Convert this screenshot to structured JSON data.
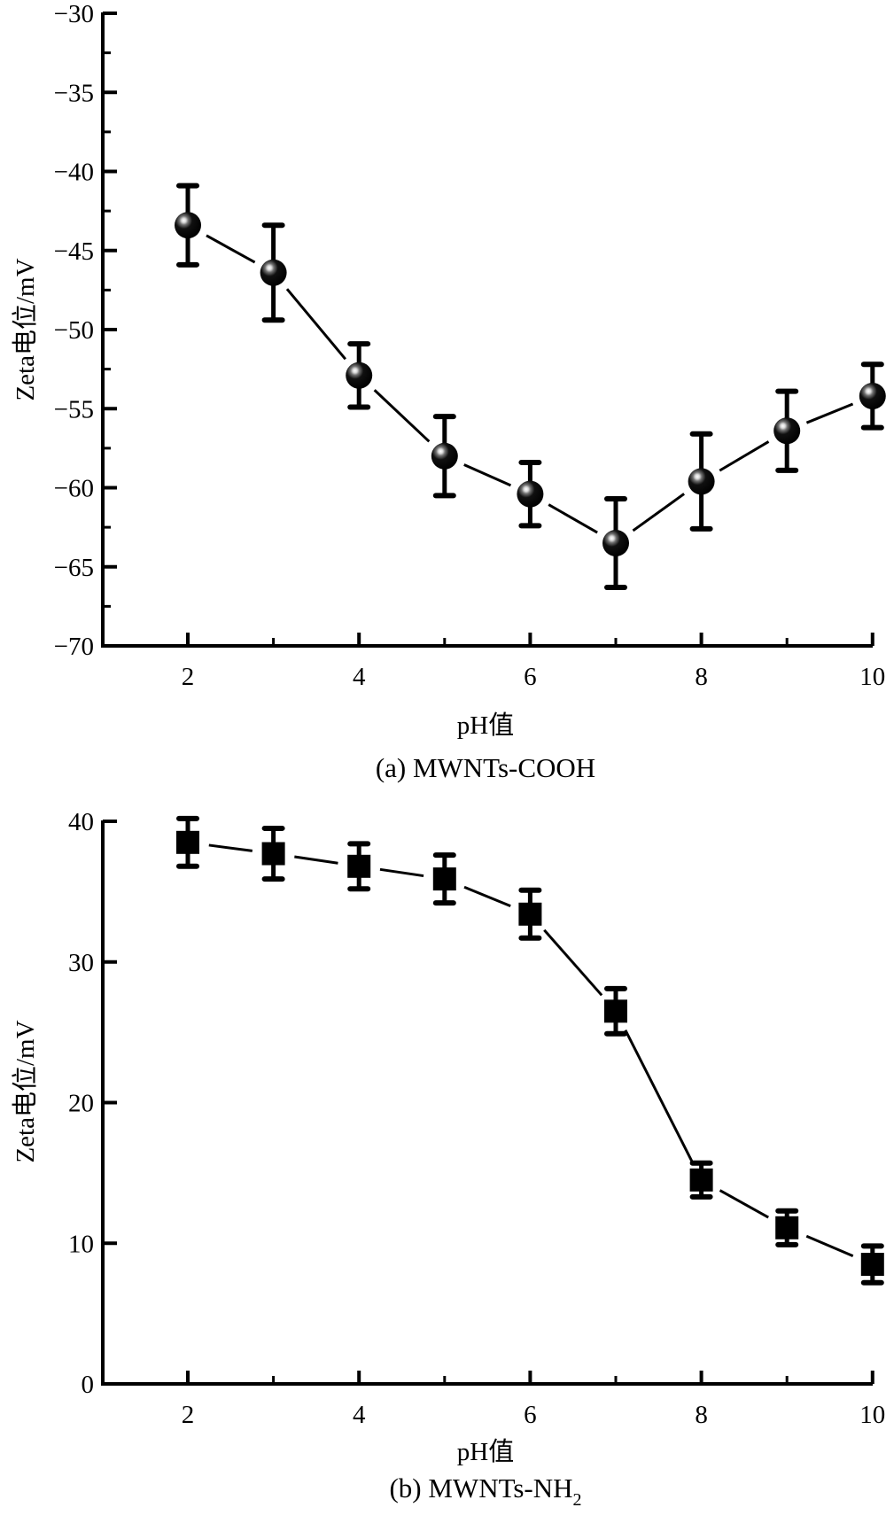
{
  "chart_data": [
    {
      "type": "line",
      "caption": "(a) MWNTs-COOH",
      "xlabel": "pH值",
      "ylabel": "Zeta电位/mV",
      "xlim": [
        1,
        10
      ],
      "ylim": [
        -70,
        -30
      ],
      "xticks": [
        2,
        4,
        6,
        8,
        10
      ],
      "xminor": [
        3,
        5,
        7,
        9
      ],
      "yticks": [
        -30,
        -35,
        -40,
        -45,
        -50,
        -55,
        -60,
        -65,
        -70
      ],
      "yticks_labels": [
        "−30",
        "−35",
        "−40",
        "−45",
        "−50",
        "−55",
        "−60",
        "−65",
        "−70"
      ],
      "yminor": [
        -32.5,
        -37.5,
        -42.5,
        -47.5,
        -52.5,
        -57.5,
        -62.5,
        -67.5
      ],
      "marker": "sphere",
      "grid": false,
      "legend": "none",
      "series": [
        {
          "name": "MWNTs-COOH",
          "x": [
            2,
            3,
            4,
            5,
            6,
            7,
            8,
            9,
            10
          ],
          "y": [
            -43.4,
            -46.4,
            -52.9,
            -58.0,
            -60.4,
            -63.5,
            -59.6,
            -56.4,
            -54.2
          ],
          "error": [
            2.5,
            3.0,
            2.0,
            2.5,
            2.0,
            2.8,
            3.0,
            2.5,
            2.0
          ]
        }
      ]
    },
    {
      "type": "line",
      "caption": "(b) MWNTs-NH",
      "caption_sub": "2",
      "xlabel": "pH值",
      "ylabel": "Zeta电位/mV",
      "xlim": [
        1,
        10
      ],
      "ylim": [
        0,
        40
      ],
      "xticks": [
        2,
        4,
        6,
        8,
        10
      ],
      "xminor": [
        3,
        5,
        7,
        9
      ],
      "yticks": [
        0,
        10,
        20,
        30,
        40
      ],
      "yticks_labels": [
        "0",
        "10",
        "20",
        "30",
        "40"
      ],
      "yminor": [],
      "marker": "square",
      "grid": false,
      "legend": "none",
      "series": [
        {
          "name": "MWNTs-NH2",
          "x": [
            2,
            3,
            4,
            5,
            6,
            7,
            8,
            9,
            10
          ],
          "y": [
            38.5,
            37.7,
            36.8,
            35.9,
            33.4,
            26.5,
            14.5,
            11.1,
            8.5
          ],
          "error": [
            1.7,
            1.8,
            1.6,
            1.7,
            1.7,
            1.6,
            1.2,
            1.2,
            1.3
          ]
        }
      ]
    }
  ]
}
